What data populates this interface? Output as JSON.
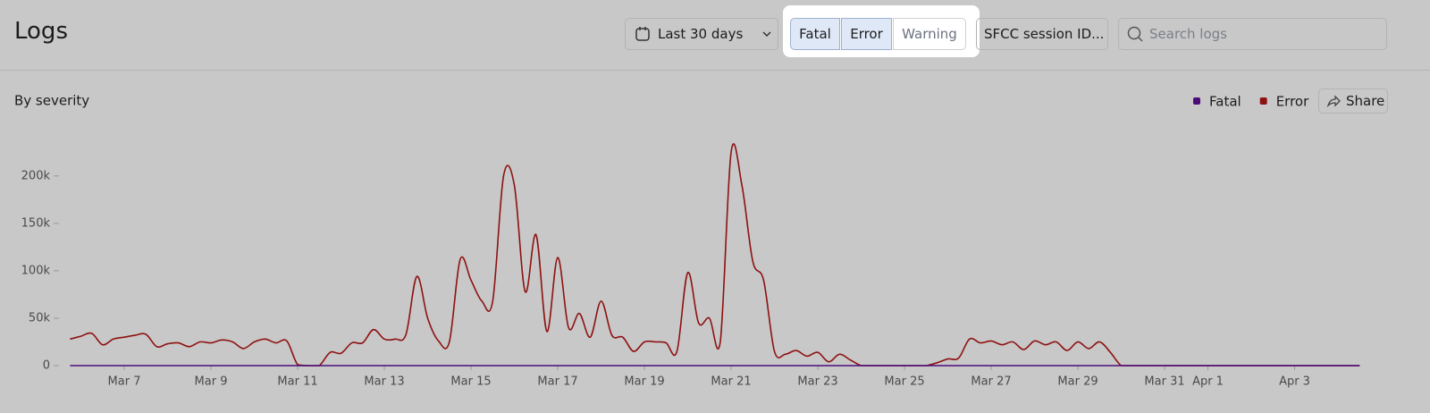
{
  "header": {
    "title": "Logs",
    "date_range": "Last 30 days",
    "filters": [
      "Fatal",
      "Error",
      "Warning"
    ],
    "session_filter": "SFCC session ID...",
    "search_placeholder": "Search logs"
  },
  "panel": {
    "share": "Share"
  },
  "chart_data": {
    "type": "line",
    "title": "By severity",
    "categories": [
      null,
      null,
      null,
      null,
      null,
      "Mar 7",
      null,
      null,
      null,
      null,
      null,
      null,
      null,
      "Mar 9",
      null,
      null,
      null,
      null,
      null,
      null,
      null,
      "Mar 11",
      null,
      null,
      null,
      null,
      null,
      null,
      null,
      "Mar 13",
      null,
      null,
      null,
      null,
      null,
      null,
      null,
      "Mar 15",
      null,
      null,
      null,
      null,
      null,
      null,
      null,
      "Mar 17",
      null,
      null,
      null,
      null,
      null,
      null,
      null,
      "Mar 19",
      null,
      null,
      null,
      null,
      null,
      null,
      null,
      "Mar 21",
      null,
      null,
      null,
      null,
      null,
      null,
      null,
      "Mar 23",
      null,
      null,
      null,
      null,
      null,
      null,
      null,
      "Mar 25",
      null,
      null,
      null,
      null,
      null,
      null,
      null,
      "Mar 27",
      null,
      null,
      null,
      null,
      null,
      null,
      null,
      "Mar 29",
      null,
      null,
      null,
      null,
      null,
      null,
      null,
      "Mar 31",
      null,
      null,
      null,
      "Apr 1",
      null,
      null,
      null,
      null,
      null,
      null,
      null,
      "Apr 3",
      null,
      null,
      null,
      null,
      null,
      null
    ],
    "series": [
      {
        "name": "Fatal",
        "color": "#4b0c7a",
        "values": [
          0,
          0,
          0,
          0,
          0,
          0,
          0,
          0,
          0,
          0,
          0,
          0,
          0,
          0,
          0,
          0,
          0,
          0,
          0,
          0,
          0,
          0,
          0,
          0,
          0,
          0,
          0,
          0,
          0,
          0,
          0,
          0,
          0,
          0,
          0,
          0,
          0,
          0,
          0,
          0,
          0,
          0,
          0,
          0,
          0,
          0,
          0,
          0,
          0,
          0,
          0,
          0,
          0,
          0,
          0,
          0,
          0,
          0,
          0,
          0,
          0,
          0,
          0,
          0,
          0,
          0,
          0,
          0,
          0,
          0,
          0,
          0,
          0,
          0,
          0,
          0,
          0,
          0,
          0,
          0,
          0,
          0,
          0,
          0,
          0,
          0,
          0,
          0,
          0,
          0,
          0,
          0,
          0,
          0,
          0,
          0,
          0,
          0,
          0,
          0,
          0,
          0,
          0,
          0,
          0,
          0,
          0,
          0,
          0,
          0,
          0,
          0,
          0,
          0,
          0,
          0,
          0,
          0,
          0,
          0
        ]
      },
      {
        "name": "Error",
        "color": "#8e1111",
        "values": [
          28000,
          31000,
          34000,
          22000,
          28000,
          30000,
          32000,
          33000,
          20000,
          23000,
          24000,
          20000,
          25000,
          24000,
          27000,
          25000,
          18000,
          25000,
          28000,
          24000,
          26000,
          1000,
          0,
          0,
          14000,
          13000,
          24000,
          24000,
          38000,
          28000,
          28000,
          33000,
          94000,
          50000,
          26000,
          25000,
          112000,
          90000,
          68000,
          68000,
          200000,
          190000,
          78000,
          138000,
          36000,
          114000,
          40000,
          55000,
          30000,
          68000,
          32000,
          30000,
          15000,
          25000,
          25000,
          24000,
          15000,
          98000,
          45000,
          50000,
          25000,
          225000,
          190000,
          110000,
          90000,
          15000,
          12000,
          16000,
          10000,
          14000,
          4000,
          12000,
          6000,
          0,
          0,
          0,
          0,
          0,
          0,
          0,
          3000,
          7000,
          8000,
          28000,
          24000,
          26000,
          22000,
          25000,
          17000,
          26000,
          22000,
          25000,
          16000,
          25000,
          18000,
          25000,
          14000,
          0,
          0,
          0,
          0,
          0,
          0,
          0,
          0,
          0,
          0,
          0,
          0,
          0,
          0,
          0,
          0,
          0,
          0,
          0,
          0,
          0,
          0,
          0
        ]
      }
    ],
    "ylim": [
      0,
      230000
    ],
    "yticks": [
      0,
      {
        "value": 50000,
        "label": "50k"
      },
      {
        "value": 100000,
        "label": "100k"
      },
      {
        "value": 150000,
        "label": "150k"
      },
      {
        "value": 200000,
        "label": "200k"
      }
    ]
  }
}
